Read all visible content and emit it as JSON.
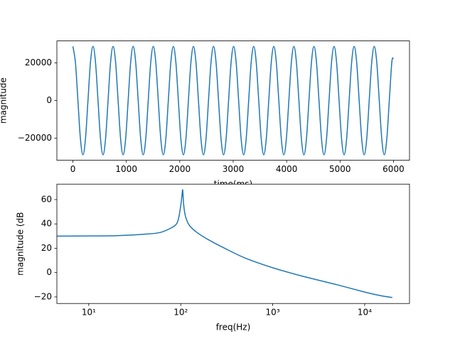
{
  "chart_data": [
    {
      "type": "line",
      "xlabel": "time(ms)",
      "ylabel": "magnitude",
      "xlim": [
        -300,
        6300
      ],
      "ylim": [
        -31680,
        31680
      ],
      "xticks": [
        0,
        1000,
        2000,
        3000,
        4000,
        5000,
        6000
      ],
      "yticks": [
        {
          "value": -20000,
          "label": "−20000"
        },
        0,
        20000
      ],
      "series": [
        {
          "color": "#1f77b4",
          "x": [
            0,
            47,
            94,
            141,
            188,
            235,
            282,
            329,
            376,
            423,
            470,
            517,
            564,
            611,
            658,
            705,
            752,
            799,
            846,
            893,
            940,
            987,
            1034,
            1081,
            1128,
            1175,
            1222,
            1269,
            1316,
            1363,
            1410,
            1457,
            1504,
            1551,
            1598,
            1645,
            1692,
            1739,
            1786,
            1833,
            1880,
            1927,
            1974,
            2021,
            2068,
            2115,
            2162,
            2209,
            2256,
            2303,
            2350,
            2397,
            2444,
            2491,
            2538,
            2585,
            2632,
            2679,
            2726,
            2773,
            2820,
            2867,
            2914,
            2961,
            3008,
            3055,
            3102,
            3149,
            3196,
            3243,
            3290,
            3337,
            3384,
            3431,
            3478,
            3525,
            3572,
            3619,
            3666,
            3713,
            3760,
            3807,
            3854,
            3901,
            3948,
            3995,
            4042,
            4089,
            4136,
            4183,
            4230,
            4277,
            4324,
            4371,
            4418,
            4465,
            4512,
            4559,
            4606,
            4653,
            4700,
            4747,
            4794,
            4841,
            4888,
            4935,
            4982,
            5029,
            5076,
            5123,
            5170,
            5217,
            5264,
            5311,
            5358,
            5405,
            5452,
            5499,
            5546,
            5593,
            5640,
            5687,
            5734,
            5781,
            5828,
            5875,
            5922,
            5969,
            6000
          ],
          "values": [
            28800,
            20365,
            0,
            -20365,
            -28800,
            -20365,
            0,
            20365,
            28800,
            20365,
            0,
            -20365,
            -28800,
            -20365,
            0,
            20365,
            28800,
            20365,
            0,
            -20365,
            -28800,
            -20365,
            0,
            20365,
            28800,
            20365,
            0,
            -20365,
            -28800,
            -20365,
            0,
            20365,
            28800,
            20365,
            0,
            -20365,
            -28800,
            -20365,
            0,
            20365,
            28800,
            20365,
            0,
            -20365,
            -28800,
            -20365,
            0,
            20365,
            28800,
            20365,
            0,
            -20365,
            -28800,
            -20365,
            0,
            20365,
            28800,
            20365,
            0,
            -20365,
            -28800,
            -20365,
            0,
            20365,
            28800,
            20365,
            0,
            -20365,
            -28800,
            -20365,
            0,
            20365,
            28800,
            20365,
            0,
            -20365,
            -28800,
            -20365,
            0,
            20365,
            28800,
            20365,
            0,
            -20365,
            -28800,
            -20365,
            0,
            20365,
            28800,
            20365,
            0,
            -20365,
            -28800,
            -20365,
            0,
            20365,
            28800,
            20365,
            0,
            -20365,
            -28800,
            -20365,
            0,
            20365,
            28800,
            20365,
            0,
            -20365,
            -28800,
            -20365,
            0,
            20365,
            28800,
            20365,
            0,
            -20365,
            -28800,
            -20365,
            0,
            20365,
            28800,
            20365,
            0,
            -20365,
            -28800,
            -20365,
            0,
            20365,
            22500
          ]
        }
      ]
    },
    {
      "type": "line",
      "xlabel": "freq(Hz)",
      "ylabel": "magnitude (dB",
      "xscale": "log",
      "xlim": [
        4.5,
        30700
      ],
      "ylim": [
        -25.4,
        72.7
      ],
      "xticks": [
        {
          "value": 10,
          "label": "10¹"
        },
        {
          "value": 100,
          "label": "10²"
        },
        {
          "value": 1000,
          "label": "10³"
        },
        {
          "value": 10000,
          "label": "10⁴"
        }
      ],
      "yticks": [
        {
          "value": -20,
          "label": "−20"
        },
        0,
        20,
        40,
        60
      ],
      "series": [
        {
          "color": "#1f77b4",
          "x": [
            4.5,
            10,
            20,
            40,
            60,
            80,
            90,
            95,
            100,
            103,
            105,
            107,
            110,
            115,
            125,
            150,
            200,
            300,
            500,
            1000,
            2000,
            5000,
            10000,
            15000,
            20000
          ],
          "values": [
            30,
            30.1,
            30.3,
            31.5,
            33,
            37,
            40,
            45,
            55,
            63,
            68,
            58,
            50,
            44,
            38.5,
            33,
            27,
            20,
            12,
            4,
            -2.5,
            -10,
            -16,
            -19,
            -20.5
          ]
        }
      ]
    }
  ]
}
